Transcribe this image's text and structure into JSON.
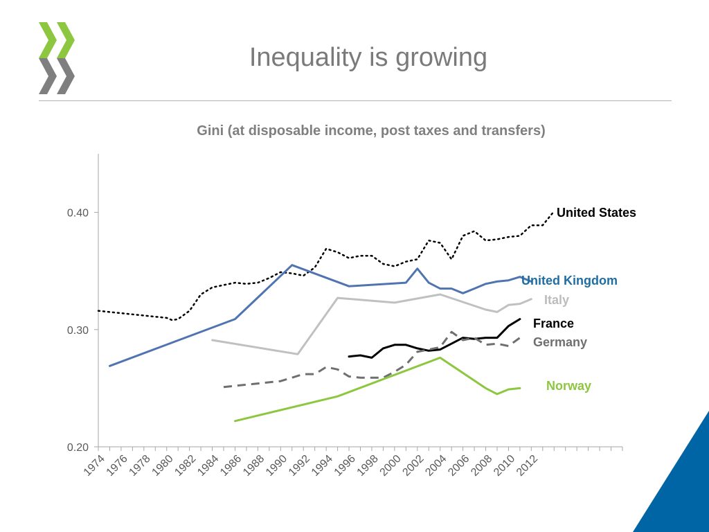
{
  "slide": {
    "title": "Inequality is growing"
  },
  "colors": {
    "logo_green": "#8dc63f",
    "logo_grey": "#7f7f7f",
    "corner_blue": "#0065a4"
  },
  "chart_data": {
    "type": "line",
    "title": "Gini (at disposable income, post taxes and transfers)",
    "xlabel": "",
    "ylabel": "",
    "xlim": [
      1974,
      2020
    ],
    "ylim": [
      0.2,
      0.45
    ],
    "x_ticks": [
      "1974",
      "1976",
      "1978",
      "1980",
      "1982",
      "1984",
      "1986",
      "1988",
      "1990",
      "1992",
      "1994",
      "1996",
      "1998",
      "2000",
      "2002",
      "2004",
      "2006",
      "2008",
      "2010",
      "2012"
    ],
    "y_ticks": [
      {
        "value": 0.2,
        "label": "0.20"
      },
      {
        "value": 0.3,
        "label": "0.30"
      },
      {
        "value": 0.4,
        "label": "0.40"
      }
    ],
    "grid": false,
    "legend": "inline labels at right end of lines",
    "series": [
      {
        "name": "United States",
        "color": "#000000",
        "dash": "dotted",
        "label_color": "#000000",
        "points": [
          [
            1974,
            0.316
          ],
          [
            1976,
            0.314
          ],
          [
            1978,
            0.312
          ],
          [
            1980,
            0.31
          ],
          [
            1980.5,
            0.308
          ],
          [
            1981,
            0.309
          ],
          [
            1982,
            0.316
          ],
          [
            1983,
            0.33
          ],
          [
            1984,
            0.336
          ],
          [
            1985,
            0.338
          ],
          [
            1986,
            0.34
          ],
          [
            1987,
            0.339
          ],
          [
            1988,
            0.34
          ],
          [
            1989,
            0.344
          ],
          [
            1990,
            0.349
          ],
          [
            1991,
            0.348
          ],
          [
            1992,
            0.346
          ],
          [
            1993,
            0.353
          ],
          [
            1994,
            0.369
          ],
          [
            1995,
            0.366
          ],
          [
            1996,
            0.361
          ],
          [
            1997,
            0.363
          ],
          [
            1998,
            0.363
          ],
          [
            1999,
            0.356
          ],
          [
            2000,
            0.354
          ],
          [
            2001,
            0.358
          ],
          [
            2002,
            0.36
          ],
          [
            2003,
            0.376
          ],
          [
            2004,
            0.374
          ],
          [
            2005,
            0.36
          ],
          [
            2006,
            0.38
          ],
          [
            2007,
            0.384
          ],
          [
            2008,
            0.376
          ],
          [
            2009,
            0.377
          ],
          [
            2010,
            0.379
          ],
          [
            2011,
            0.38
          ],
          [
            2012,
            0.389
          ],
          [
            2013,
            0.389
          ],
          [
            2014,
            0.401
          ]
        ]
      },
      {
        "name": "United Kingdom",
        "color": "#4f74b0",
        "dash": "solid",
        "label_color": "#1f6ea3",
        "points": [
          [
            1975,
            0.269
          ],
          [
            1986,
            0.309
          ],
          [
            1991,
            0.355
          ],
          [
            1996,
            0.337
          ],
          [
            2001,
            0.34
          ],
          [
            2002,
            0.352
          ],
          [
            2003,
            0.34
          ],
          [
            2004,
            0.335
          ],
          [
            2005,
            0.335
          ],
          [
            2006,
            0.331
          ],
          [
            2007,
            0.335
          ],
          [
            2008,
            0.339
          ],
          [
            2009,
            0.341
          ],
          [
            2010,
            0.342
          ],
          [
            2011,
            0.345
          ],
          [
            2012,
            0.341
          ]
        ]
      },
      {
        "name": "Italy",
        "color": "#c0c0c0",
        "dash": "solid",
        "label_color": "#bcbcbc",
        "points": [
          [
            1984,
            0.291
          ],
          [
            1991.5,
            0.279
          ],
          [
            1995,
            0.327
          ],
          [
            2000,
            0.323
          ],
          [
            2004,
            0.33
          ],
          [
            2008,
            0.317
          ],
          [
            2009,
            0.315
          ],
          [
            2010,
            0.321
          ],
          [
            2011,
            0.322
          ],
          [
            2012,
            0.326
          ]
        ]
      },
      {
        "name": "France",
        "color": "#000000",
        "dash": "solid",
        "label_color": "#000000",
        "points": [
          [
            1996,
            0.277
          ],
          [
            1997,
            0.278
          ],
          [
            1998,
            0.276
          ],
          [
            1999,
            0.284
          ],
          [
            2000,
            0.287
          ],
          [
            2001,
            0.287
          ],
          [
            2002,
            0.284
          ],
          [
            2003,
            0.282
          ],
          [
            2004,
            0.283
          ],
          [
            2005,
            0.288
          ],
          [
            2006,
            0.293
          ],
          [
            2007,
            0.292
          ],
          [
            2008,
            0.293
          ],
          [
            2009,
            0.293
          ],
          [
            2010,
            0.303
          ],
          [
            2011,
            0.309
          ]
        ]
      },
      {
        "name": "Germany",
        "color": "#6f6f6f",
        "dash": "dashed",
        "label_color": "#6f6f6f",
        "points": [
          [
            1985,
            0.251
          ],
          [
            1990,
            0.256
          ],
          [
            1992,
            0.262
          ],
          [
            1993,
            0.262
          ],
          [
            1994,
            0.268
          ],
          [
            1995,
            0.266
          ],
          [
            1996,
            0.26
          ],
          [
            1997,
            0.259
          ],
          [
            1998,
            0.259
          ],
          [
            1999,
            0.259
          ],
          [
            2000,
            0.264
          ],
          [
            2001,
            0.27
          ],
          [
            2002,
            0.281
          ],
          [
            2003,
            0.283
          ],
          [
            2004,
            0.285
          ],
          [
            2005,
            0.298
          ],
          [
            2006,
            0.291
          ],
          [
            2007,
            0.293
          ],
          [
            2008,
            0.287
          ],
          [
            2009,
            0.288
          ],
          [
            2010,
            0.286
          ],
          [
            2011,
            0.293
          ]
        ]
      },
      {
        "name": "Norway",
        "color": "#8dc63f",
        "dash": "solid",
        "label_color": "#8dc63f",
        "points": [
          [
            1986,
            0.222
          ],
          [
            1995,
            0.243
          ],
          [
            2004,
            0.276
          ],
          [
            2008,
            0.25
          ],
          [
            2009,
            0.245
          ],
          [
            2010,
            0.249
          ],
          [
            2011,
            0.25
          ]
        ]
      }
    ]
  }
}
